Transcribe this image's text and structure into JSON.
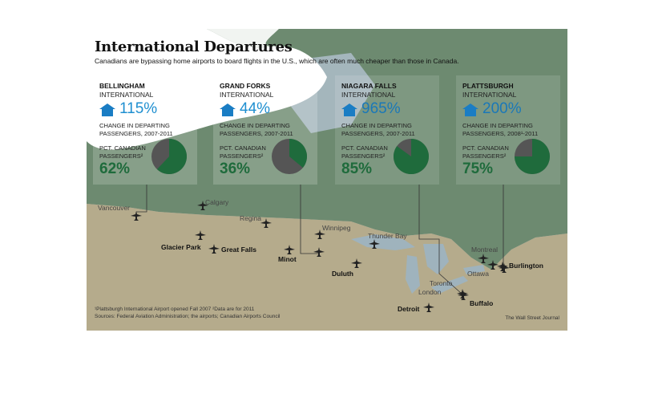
{
  "title": "International Departures",
  "subtitle": "Canadians are bypassing home airports to board flights in the U.S., which are often much cheaper than those in Canada.",
  "colors": {
    "change": "#1f8fd0",
    "canadian_share": "#1f6b3c",
    "pie_rest": "#555555",
    "canada_land": "#6f8a72",
    "us_land": "#b4aa8a",
    "water": "#aab9c2"
  },
  "airports": [
    {
      "name": "BELLINGHAM",
      "sub": "INTERNATIONAL",
      "change": "115%",
      "change_label": "CHANGE IN DEPARTING PASSENGERS, 2007-2011",
      "canadian_label": "PCT. CANADIAN PASSENGERS²",
      "canadian_share": "62%",
      "canadian_share_value": 62
    },
    {
      "name": "GRAND FORKS",
      "sub": "INTERNATIONAL",
      "change": "44%",
      "change_label": "CHANGE IN DEPARTING PASSENGERS, 2007-2011",
      "canadian_label": "PCT. CANADIAN PASSENGERS²",
      "canadian_share": "36%",
      "canadian_share_value": 36
    },
    {
      "name": "NIAGARA FALLS",
      "sub": "INTERNATIONAL",
      "change": "965%",
      "change_label": "CHANGE IN DEPARTING PASSENGERS, 2007-2011",
      "canadian_label": "PCT. CANADIAN PASSENGERS²",
      "canadian_share": "85%",
      "canadian_share_value": 85
    },
    {
      "name": "PLATTSBURGH",
      "sub": "INTERNATIONAL",
      "change": "200%",
      "change_label": "CHANGE IN DEPARTING PASSENGERS, 2008¹-2011",
      "canadian_label": "PCT. CANADIAN PASSENGERS²",
      "canadian_share": "75%",
      "canadian_share_value": 75
    }
  ],
  "cities": {
    "vancouver": "Vancouver",
    "calgary": "Calgary",
    "regina": "Regina",
    "winnipeg": "Winnipeg",
    "thunder_bay": "Thunder Bay",
    "montreal": "Montreal",
    "ottawa": "Ottawa",
    "toronto": "Toronto",
    "london": "London",
    "glacier_park": "Glacier Park",
    "great_falls": "Great Falls",
    "minot": "Minot",
    "duluth": "Duluth",
    "detroit": "Detroit",
    "buffalo": "Buffalo",
    "burlington": "Burlington"
  },
  "footnotes": {
    "line1": "¹Plattsburgh International Airport opened Fall 2007     ²Data are for 2011",
    "line2": "Sources: Federal Aviation Administration; the airports; Canadian Airports Council"
  },
  "credit": "The Wall Street Journal",
  "icons": [
    "house-icon",
    "plane-icon",
    "pie-chart"
  ]
}
